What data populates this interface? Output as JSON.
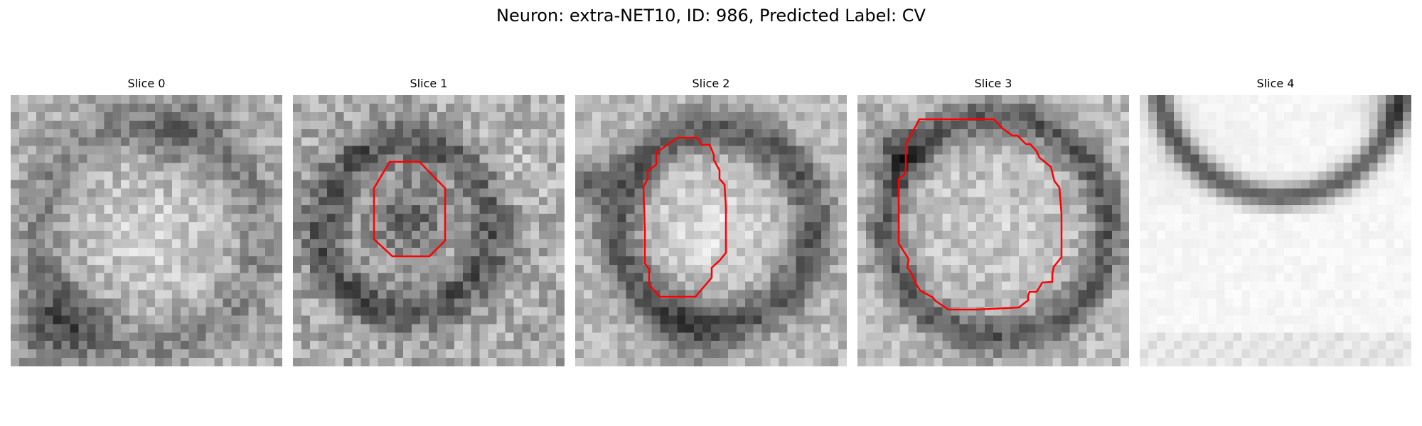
{
  "figure": {
    "title": "Neuron: extra-NET10, ID: 986, Predicted Label: CV"
  },
  "panels": [
    {
      "title": "Slice 0",
      "has_contour": false,
      "texture": "slice0"
    },
    {
      "title": "Slice 1",
      "has_contour": true,
      "texture": "slice1"
    },
    {
      "title": "Slice 2",
      "has_contour": true,
      "texture": "slice2"
    },
    {
      "title": "Slice 3",
      "has_contour": true,
      "texture": "slice3"
    },
    {
      "title": "Slice 4",
      "has_contour": false,
      "texture": "slice4"
    }
  ],
  "contour_color": "#ff0000"
}
